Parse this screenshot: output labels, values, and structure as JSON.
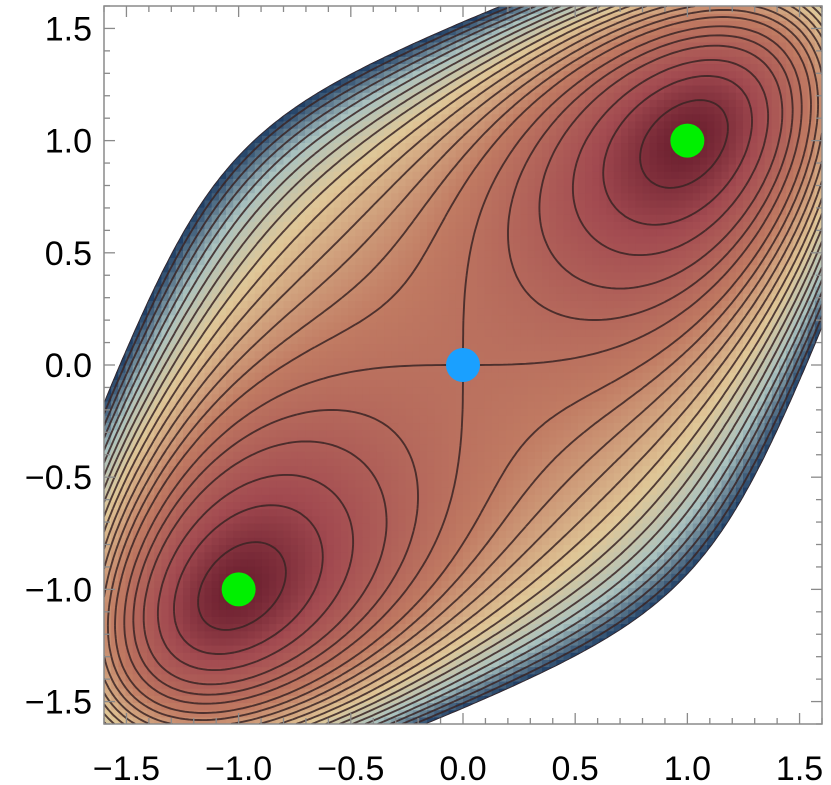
{
  "chart_data": {
    "type": "contour",
    "title": "",
    "xlabel": "",
    "ylabel": "",
    "xlim": [
      -1.6,
      1.6
    ],
    "ylim": [
      -1.6,
      1.6
    ],
    "x_ticks": [
      {
        "value": -1.5,
        "label": "−1.5"
      },
      {
        "value": -1.0,
        "label": "−1.0"
      },
      {
        "value": -0.5,
        "label": "−0.5"
      },
      {
        "value": 0.0,
        "label": "0.0"
      },
      {
        "value": 0.5,
        "label": "0.5"
      },
      {
        "value": 1.0,
        "label": "1.0"
      },
      {
        "value": 1.5,
        "label": "1.5"
      }
    ],
    "y_ticks": [
      {
        "value": 1.5,
        "label": "1.5"
      },
      {
        "value": 1.0,
        "label": "1.0"
      },
      {
        "value": 0.5,
        "label": "0.5"
      },
      {
        "value": 0.0,
        "label": "0.0"
      },
      {
        "value": -0.5,
        "label": "−0.5"
      },
      {
        "value": -1.0,
        "label": "−1.0"
      },
      {
        "value": -1.5,
        "label": "−1.5"
      }
    ],
    "grid": false,
    "legend": "none",
    "colormap": [
      "#6b1f2f",
      "#a24a50",
      "#c07a62",
      "#e0c797",
      "#a9c2c0",
      "#1f3f66"
    ],
    "points": [
      {
        "x": 1.0,
        "y": 1.0,
        "color": "#00f000",
        "kind": "minimum"
      },
      {
        "x": -1.0,
        "y": -1.0,
        "color": "#00f000",
        "kind": "minimum"
      },
      {
        "x": 0.0,
        "y": 0.0,
        "color": "#1aa0ff",
        "kind": "saddle"
      }
    ]
  }
}
